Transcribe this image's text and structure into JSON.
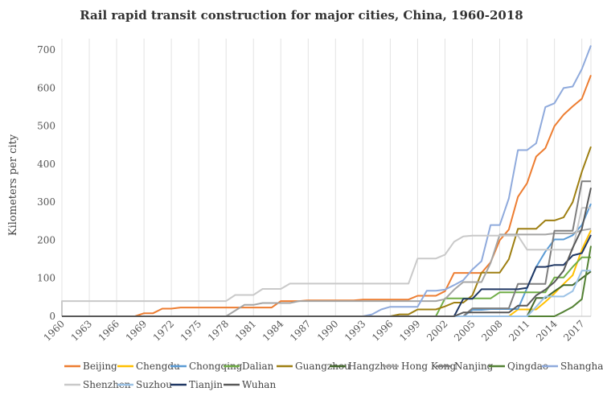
{
  "chart_data": {
    "type": "line",
    "title": "Rail rapid transit construction for major cities, China, 1960-2018",
    "xlabel": "",
    "ylabel": "Kilometers per city",
    "xlim": [
      1960,
      2018
    ],
    "ylim": [
      0,
      730
    ],
    "yticks": [
      0,
      100,
      200,
      300,
      400,
      500,
      600,
      700
    ],
    "xticks": [
      1960,
      1963,
      1966,
      1969,
      1972,
      1975,
      1978,
      1981,
      1984,
      1987,
      1990,
      1993,
      1996,
      1999,
      2002,
      2005,
      2008,
      2011,
      2014,
      2017
    ],
    "grid": "vertical",
    "legend_position": "bottom",
    "series": [
      {
        "name": "Beijing",
        "color": "#ed7d31",
        "points": [
          [
            1960,
            0
          ],
          [
            1968,
            0
          ],
          [
            1969,
            8
          ],
          [
            1970,
            8
          ],
          [
            1971,
            20
          ],
          [
            1972,
            20
          ],
          [
            1973,
            23
          ],
          [
            1983,
            23
          ],
          [
            1984,
            40
          ],
          [
            1986,
            40
          ],
          [
            1987,
            42
          ],
          [
            1992,
            42
          ],
          [
            1993,
            44
          ],
          [
            1998,
            44
          ],
          [
            1999,
            54
          ],
          [
            2001,
            54
          ],
          [
            2002,
            66
          ],
          [
            2003,
            114
          ],
          [
            2006,
            114
          ],
          [
            2007,
            142
          ],
          [
            2008,
            200
          ],
          [
            2009,
            228
          ],
          [
            2010,
            314
          ],
          [
            2011,
            350
          ],
          [
            2012,
            420
          ],
          [
            2013,
            442
          ],
          [
            2014,
            500
          ],
          [
            2015,
            530
          ],
          [
            2016,
            552
          ],
          [
            2017,
            572
          ],
          [
            2018,
            634
          ]
        ]
      },
      {
        "name": "Chengdu",
        "color": "#ffc000",
        "points": [
          [
            1960,
            0
          ],
          [
            2009,
            0
          ],
          [
            2010,
            18
          ],
          [
            2012,
            18
          ],
          [
            2013,
            38
          ],
          [
            2014,
            60
          ],
          [
            2015,
            85
          ],
          [
            2016,
            108
          ],
          [
            2017,
            175
          ],
          [
            2018,
            226
          ]
        ]
      },
      {
        "name": "Chongqing",
        "color": "#5b9bd5",
        "points": [
          [
            1960,
            0
          ],
          [
            2004,
            0
          ],
          [
            2005,
            17
          ],
          [
            2006,
            17
          ],
          [
            2007,
            19
          ],
          [
            2010,
            19
          ],
          [
            2011,
            75
          ],
          [
            2012,
            130
          ],
          [
            2013,
            170
          ],
          [
            2014,
            202
          ],
          [
            2015,
            202
          ],
          [
            2016,
            213
          ],
          [
            2017,
            240
          ],
          [
            2018,
            296
          ]
        ]
      },
      {
        "name": "Dalian",
        "color": "#70ad47",
        "points": [
          [
            1960,
            0
          ],
          [
            2001,
            0
          ],
          [
            2002,
            47
          ],
          [
            2003,
            47
          ],
          [
            2006,
            47
          ],
          [
            2007,
            47
          ],
          [
            2008,
            63
          ],
          [
            2011,
            63
          ],
          [
            2012,
            63
          ],
          [
            2013,
            63
          ],
          [
            2014,
            102
          ],
          [
            2015,
            102
          ],
          [
            2016,
            130
          ],
          [
            2017,
            155
          ],
          [
            2018,
            155
          ]
        ]
      },
      {
        "name": "Guangzhou",
        "color": "#9e7f12",
        "points": [
          [
            1960,
            0
          ],
          [
            1996,
            0
          ],
          [
            1997,
            5
          ],
          [
            1998,
            5
          ],
          [
            1999,
            18
          ],
          [
            2001,
            18
          ],
          [
            2002,
            26
          ],
          [
            2003,
            36
          ],
          [
            2004,
            36
          ],
          [
            2005,
            55
          ],
          [
            2006,
            115
          ],
          [
            2008,
            115
          ],
          [
            2009,
            150
          ],
          [
            2010,
            230
          ],
          [
            2012,
            230
          ],
          [
            2013,
            252
          ],
          [
            2014,
            252
          ],
          [
            2015,
            260
          ],
          [
            2016,
            300
          ],
          [
            2017,
            380
          ],
          [
            2018,
            446
          ]
        ]
      },
      {
        "name": "Hangzhou",
        "color": "#43682b",
        "points": [
          [
            1960,
            0
          ],
          [
            2011,
            0
          ],
          [
            2012,
            48
          ],
          [
            2013,
            48
          ],
          [
            2014,
            66
          ],
          [
            2015,
            82
          ],
          [
            2016,
            82
          ],
          [
            2017,
            100
          ],
          [
            2018,
            118
          ]
        ]
      },
      {
        "name": "Hong Kong",
        "color": "#a5a5a5",
        "points": [
          [
            1960,
            0
          ],
          [
            1978,
            0
          ],
          [
            1979,
            15
          ],
          [
            1980,
            30
          ],
          [
            1981,
            30
          ],
          [
            1982,
            35
          ],
          [
            1985,
            35
          ],
          [
            1986,
            40
          ],
          [
            1997,
            40
          ],
          [
            1998,
            40
          ],
          [
            2001,
            40
          ],
          [
            2002,
            45
          ],
          [
            2003,
            70
          ],
          [
            2004,
            90
          ],
          [
            2005,
            90
          ],
          [
            2006,
            90
          ],
          [
            2007,
            140
          ],
          [
            2008,
            215
          ],
          [
            2009,
            215
          ],
          [
            2010,
            215
          ],
          [
            2013,
            215
          ],
          [
            2014,
            218
          ],
          [
            2015,
            218
          ],
          [
            2016,
            218
          ],
          [
            2017,
            226
          ],
          [
            2018,
            230
          ]
        ]
      },
      {
        "name": "Nanjing",
        "color": "#7f7f7f",
        "points": [
          [
            1960,
            0
          ],
          [
            2004,
            0
          ],
          [
            2005,
            21
          ],
          [
            2009,
            21
          ],
          [
            2010,
            85
          ],
          [
            2012,
            85
          ],
          [
            2013,
            85
          ],
          [
            2014,
            225
          ],
          [
            2015,
            225
          ],
          [
            2016,
            225
          ],
          [
            2017,
            355
          ],
          [
            2018,
            355
          ]
        ]
      },
      {
        "name": "Qingdao",
        "color": "#548235",
        "points": [
          [
            1960,
            0
          ],
          [
            2014,
            0
          ],
          [
            2015,
            12
          ],
          [
            2016,
            25
          ],
          [
            2017,
            45
          ],
          [
            2018,
            185
          ]
        ]
      },
      {
        "name": "Shanghai",
        "color": "#8faadc",
        "points": [
          [
            1960,
            0
          ],
          [
            1993,
            0
          ],
          [
            1994,
            5
          ],
          [
            1995,
            18
          ],
          [
            1996,
            25
          ],
          [
            1997,
            25
          ],
          [
            1999,
            25
          ],
          [
            2000,
            67
          ],
          [
            2001,
            67
          ],
          [
            2002,
            70
          ],
          [
            2003,
            82
          ],
          [
            2004,
            95
          ],
          [
            2005,
            123
          ],
          [
            2006,
            145
          ],
          [
            2007,
            240
          ],
          [
            2008,
            240
          ],
          [
            2009,
            310
          ],
          [
            2010,
            437
          ],
          [
            2011,
            437
          ],
          [
            2012,
            455
          ],
          [
            2013,
            550
          ],
          [
            2014,
            560
          ],
          [
            2015,
            600
          ],
          [
            2016,
            604
          ],
          [
            2017,
            650
          ],
          [
            2018,
            712
          ]
        ]
      },
      {
        "name": "Shenzhen",
        "color": "#c9c9c9",
        "points": [
          [
            1960,
            0
          ],
          [
            1960,
            40
          ],
          [
            1978,
            40
          ],
          [
            1979,
            56
          ],
          [
            1981,
            56
          ],
          [
            1982,
            72
          ],
          [
            1984,
            72
          ],
          [
            1985,
            86
          ],
          [
            1998,
            86
          ],
          [
            1999,
            152
          ],
          [
            2001,
            152
          ],
          [
            2002,
            162
          ],
          [
            2003,
            196
          ],
          [
            2004,
            210
          ],
          [
            2005,
            212
          ],
          [
            2010,
            212
          ],
          [
            2011,
            175
          ],
          [
            2012,
            175
          ],
          [
            2016,
            175
          ],
          [
            2017,
            285
          ],
          [
            2018,
            285
          ]
        ]
      },
      {
        "name": "Suzhou",
        "color": "#9dc3e6",
        "points": [
          [
            1960,
            0
          ],
          [
            2011,
            0
          ],
          [
            2012,
            25
          ],
          [
            2013,
            52
          ],
          [
            2015,
            52
          ],
          [
            2016,
            66
          ],
          [
            2017,
            120
          ],
          [
            2018,
            120
          ]
        ]
      },
      {
        "name": "Tianjin",
        "color": "#203864",
        "points": [
          [
            1960,
            0
          ],
          [
            2003,
            0
          ],
          [
            2004,
            46
          ],
          [
            2005,
            46
          ],
          [
            2006,
            71
          ],
          [
            2010,
            71
          ],
          [
            2011,
            75
          ],
          [
            2012,
            130
          ],
          [
            2013,
            130
          ],
          [
            2014,
            135
          ],
          [
            2015,
            135
          ],
          [
            2016,
            160
          ],
          [
            2017,
            166
          ],
          [
            2018,
            214
          ]
        ]
      },
      {
        "name": "Wuhan",
        "color": "#595959",
        "points": [
          [
            1960,
            0
          ],
          [
            2003,
            0
          ],
          [
            2004,
            10
          ],
          [
            2009,
            10
          ],
          [
            2010,
            28
          ],
          [
            2011,
            28
          ],
          [
            2012,
            55
          ],
          [
            2013,
            70
          ],
          [
            2014,
            90
          ],
          [
            2015,
            120
          ],
          [
            2016,
            180
          ],
          [
            2017,
            230
          ],
          [
            2018,
            338
          ]
        ]
      }
    ]
  }
}
